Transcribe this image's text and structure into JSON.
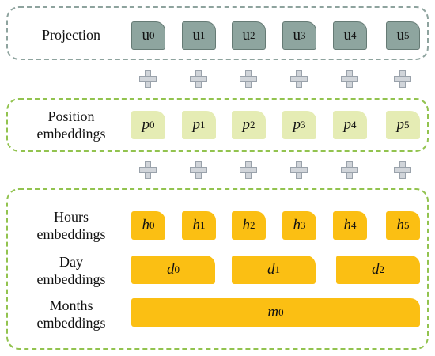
{
  "projection": {
    "label": "Projection",
    "tokens": [
      {
        "base": "u",
        "sub": "0"
      },
      {
        "base": "u",
        "sub": "1"
      },
      {
        "base": "u",
        "sub": "2"
      },
      {
        "base": "u",
        "sub": "3"
      },
      {
        "base": "u",
        "sub": "4"
      },
      {
        "base": "u",
        "sub": "5"
      }
    ]
  },
  "position": {
    "label_line1": "Position",
    "label_line2": "embeddings",
    "tokens": [
      {
        "base": "p",
        "sub": "0"
      },
      {
        "base": "p",
        "sub": "1"
      },
      {
        "base": "p",
        "sub": "2"
      },
      {
        "base": "p",
        "sub": "3"
      },
      {
        "base": "p",
        "sub": "4"
      },
      {
        "base": "p",
        "sub": "5"
      }
    ]
  },
  "hours": {
    "label_line1": "Hours",
    "label_line2": "embeddings",
    "tokens": [
      {
        "base": "h",
        "sub": "0"
      },
      {
        "base": "h",
        "sub": "1"
      },
      {
        "base": "h",
        "sub": "2"
      },
      {
        "base": "h",
        "sub": "3"
      },
      {
        "base": "h",
        "sub": "4"
      },
      {
        "base": "h",
        "sub": "5"
      }
    ]
  },
  "day": {
    "label_line1": "Day",
    "label_line2": "embeddings",
    "tokens": [
      {
        "base": "d",
        "sub": "0"
      },
      {
        "base": "d",
        "sub": "1"
      },
      {
        "base": "d",
        "sub": "2"
      }
    ]
  },
  "months": {
    "label_line1": "Months",
    "label_line2": "embeddings",
    "tokens": [
      {
        "base": "m",
        "sub": "0"
      }
    ]
  },
  "colors": {
    "projection": "#8ea59f",
    "position": "#e5ecb4",
    "time": "#fbbf13",
    "projection_border": "#8ea39e",
    "group_border": "#92c34f"
  },
  "plus_icon": "plus-icon"
}
